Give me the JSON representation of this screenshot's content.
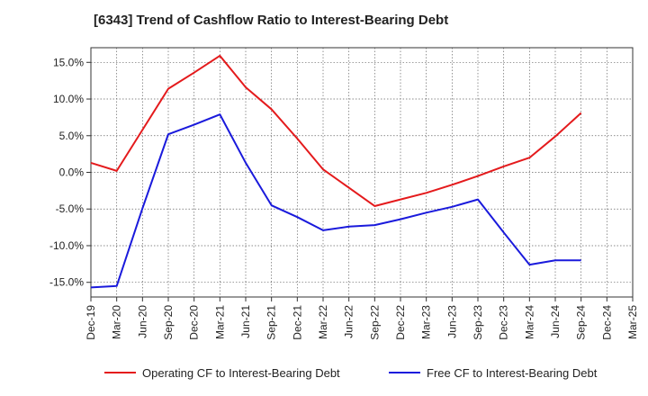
{
  "chart_data": {
    "type": "line",
    "title": "[6343]  Trend of Cashflow Ratio to Interest-Bearing Debt",
    "xlabel": "",
    "ylabel": "",
    "categories": [
      "Dec-19",
      "Mar-20",
      "Jun-20",
      "Sep-20",
      "Dec-20",
      "Mar-21",
      "Jun-21",
      "Sep-21",
      "Dec-21",
      "Mar-22",
      "Jun-22",
      "Sep-22",
      "Dec-22",
      "Mar-23",
      "Jun-23",
      "Sep-23",
      "Dec-23",
      "Mar-24",
      "Jun-24",
      "Sep-24",
      "Dec-24",
      "Mar-25"
    ],
    "ylim": [
      -17.0,
      17.0
    ],
    "yticks": [
      15.0,
      10.0,
      5.0,
      0.0,
      -5.0,
      -10.0,
      -15.0
    ],
    "ytick_labels": [
      "15.0%",
      "10.0%",
      "5.0%",
      "0.0%",
      "-5.0%",
      "-10.0%",
      "-15.0%"
    ],
    "grid": true,
    "legend_position": "bottom",
    "series": [
      {
        "name": "Operating CF to Interest-Bearing Debt",
        "color": "#e41a1c",
        "values": [
          1.3,
          0.2,
          5.8,
          11.4,
          13.6,
          15.9,
          11.6,
          8.6,
          4.6,
          0.4,
          -2.1,
          -4.6,
          -3.7,
          -2.8,
          -1.7,
          -0.5,
          0.8,
          2.0,
          4.9,
          8.1,
          null,
          null
        ]
      },
      {
        "name": "Free CF to Interest-Bearing Debt",
        "color": "#1a1adc",
        "values": [
          -15.7,
          -15.5,
          -4.9,
          5.2,
          6.5,
          7.9,
          1.3,
          -4.5,
          -6.1,
          -7.9,
          -7.4,
          -7.2,
          -6.4,
          -5.5,
          -4.7,
          -3.7,
          -8.2,
          -12.6,
          -12.0,
          -12.0,
          null,
          null
        ]
      }
    ]
  }
}
